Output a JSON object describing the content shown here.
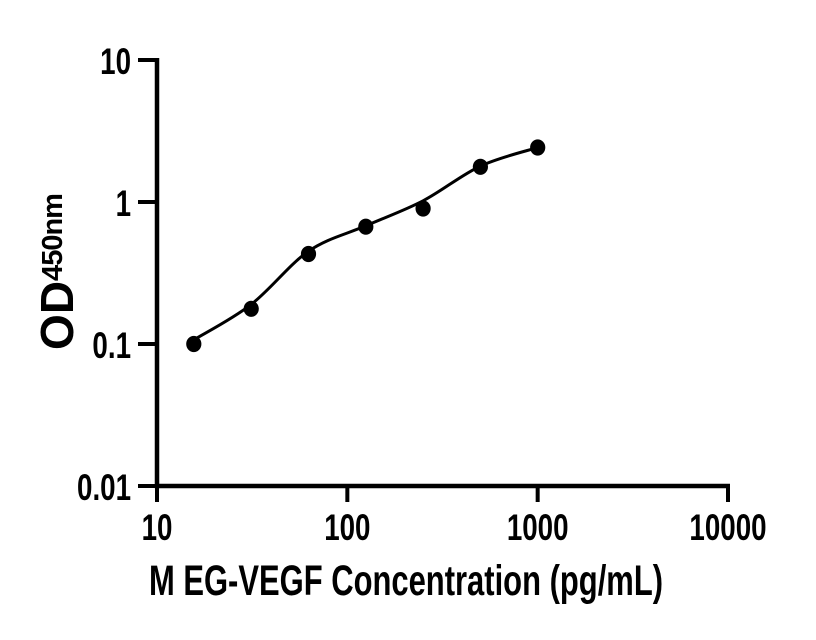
{
  "chart_data": {
    "type": "scatter",
    "title": "",
    "xlabel": "M EG-VEGF Concentration (pg/mL)",
    "ylabel_main": "OD",
    "ylabel_subscript": "450nm",
    "x_scale": "log10",
    "y_scale": "log10",
    "xlim": [
      10,
      10000
    ],
    "ylim": [
      0.01,
      10
    ],
    "grid": false,
    "legend_shown": false,
    "x_ticks": [
      {
        "value": 10,
        "label": "10"
      },
      {
        "value": 100,
        "label": "100"
      },
      {
        "value": 1000,
        "label": "1000"
      },
      {
        "value": 10000,
        "label": "10000"
      }
    ],
    "y_ticks": [
      {
        "value": 10,
        "label": "10"
      },
      {
        "value": 1,
        "label": "1"
      },
      {
        "value": 0.1,
        "label": "0.1"
      },
      {
        "value": 0.01,
        "label": "0.01"
      }
    ],
    "series": [
      {
        "name": "standard-points",
        "kind": "scatter",
        "marker": "filled-circle",
        "color": "#000000",
        "points": [
          {
            "x": 15.6,
            "y": 0.1
          },
          {
            "x": 31.25,
            "y": 0.177
          },
          {
            "x": 62.5,
            "y": 0.43
          },
          {
            "x": 125,
            "y": 0.67
          },
          {
            "x": 250,
            "y": 0.9
          },
          {
            "x": 500,
            "y": 1.77
          },
          {
            "x": 1000,
            "y": 2.42
          }
        ]
      },
      {
        "name": "fit-curve",
        "kind": "line",
        "color": "#000000",
        "points": [
          {
            "x": 15.6,
            "y": 0.107
          },
          {
            "x": 31.25,
            "y": 0.19
          },
          {
            "x": 62.5,
            "y": 0.45
          },
          {
            "x": 125,
            "y": 0.68
          },
          {
            "x": 250,
            "y": 1.02
          },
          {
            "x": 500,
            "y": 1.79
          },
          {
            "x": 1000,
            "y": 2.42
          }
        ]
      }
    ],
    "colors": {
      "axis": "#000000",
      "text": "#000000",
      "background": "#ffffff"
    }
  }
}
